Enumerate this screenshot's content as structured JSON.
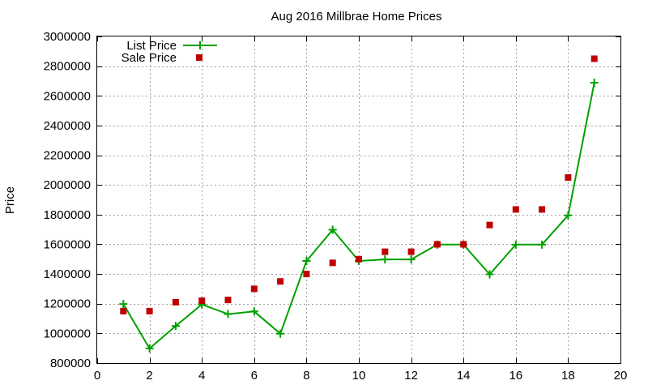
{
  "chart_data": {
    "type": "line",
    "title": "Aug 2016 Millbrae Home Prices",
    "xlabel": "",
    "ylabel": "Price",
    "xlim": [
      0,
      20
    ],
    "ylim": [
      800000,
      3000000
    ],
    "x_ticks": [
      0,
      2,
      4,
      6,
      8,
      10,
      12,
      14,
      16,
      18,
      20
    ],
    "y_ticks": [
      800000,
      1000000,
      1200000,
      1400000,
      1600000,
      1800000,
      2000000,
      2200000,
      2400000,
      2600000,
      2800000,
      3000000
    ],
    "grid": true,
    "legend_position": "top-left",
    "series": [
      {
        "name": "List Price",
        "style": "line-plus",
        "color": "#00a000",
        "x": [
          1,
          2,
          3,
          4,
          5,
          6,
          7,
          8,
          9,
          10,
          11,
          12,
          13,
          14,
          15,
          16,
          17,
          18,
          19
        ],
        "values": [
          1198000,
          898000,
          1050000,
          1195000,
          1130000,
          1148000,
          998000,
          1488000,
          1698000,
          1488000,
          1498000,
          1498000,
          1598000,
          1598000,
          1398000,
          1598000,
          1598000,
          1795000,
          2688000
        ]
      },
      {
        "name": "Sale Price",
        "style": "square-points",
        "color": "#c00000",
        "x": [
          1,
          2,
          3,
          4,
          5,
          6,
          7,
          8,
          9,
          10,
          11,
          12,
          13,
          14,
          15,
          16,
          17,
          18,
          19
        ],
        "values": [
          1150000,
          1150000,
          1210000,
          1220000,
          1225000,
          1300000,
          1350000,
          1400000,
          1475000,
          1500000,
          1550000,
          1550000,
          1600000,
          1600000,
          1730000,
          1835000,
          1835000,
          2050000,
          2850000
        ]
      }
    ]
  }
}
